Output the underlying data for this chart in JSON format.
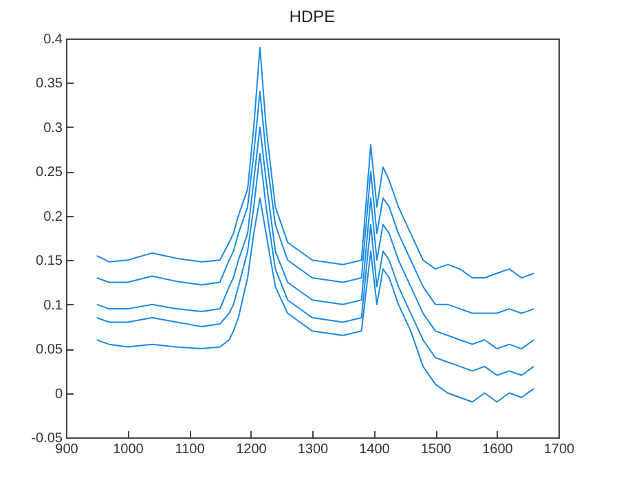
{
  "chart_data": {
    "type": "line",
    "title": "HDPE",
    "x": [
      950,
      970,
      1000,
      1040,
      1080,
      1120,
      1150,
      1165,
      1172,
      1180,
      1195,
      1205,
      1215,
      1225,
      1240,
      1260,
      1300,
      1350,
      1380,
      1395,
      1405,
      1415,
      1425,
      1440,
      1460,
      1480,
      1500,
      1520,
      1540,
      1560,
      1580,
      1600,
      1620,
      1640,
      1660
    ],
    "series": [
      {
        "color": "#1a8ae6",
        "values": [
          0.155,
          0.148,
          0.15,
          0.158,
          0.152,
          0.148,
          0.15,
          0.17,
          0.18,
          0.2,
          0.23,
          0.3,
          0.39,
          0.3,
          0.21,
          0.17,
          0.15,
          0.145,
          0.15,
          0.28,
          0.21,
          0.255,
          0.24,
          0.21,
          0.18,
          0.15,
          0.14,
          0.145,
          0.14,
          0.13,
          0.13,
          0.135,
          0.14,
          0.13,
          0.135
        ]
      },
      {
        "color": "#1a8ae6",
        "values": [
          0.13,
          0.125,
          0.125,
          0.132,
          0.126,
          0.122,
          0.125,
          0.15,
          0.16,
          0.18,
          0.21,
          0.27,
          0.34,
          0.27,
          0.19,
          0.15,
          0.13,
          0.125,
          0.13,
          0.25,
          0.18,
          0.22,
          0.21,
          0.18,
          0.15,
          0.12,
          0.1,
          0.1,
          0.095,
          0.09,
          0.09,
          0.09,
          0.095,
          0.09,
          0.095
        ]
      },
      {
        "color": "#1a8ae6",
        "values": [
          0.1,
          0.095,
          0.095,
          0.1,
          0.095,
          0.092,
          0.095,
          0.12,
          0.13,
          0.15,
          0.18,
          0.24,
          0.3,
          0.24,
          0.16,
          0.125,
          0.105,
          0.1,
          0.105,
          0.22,
          0.15,
          0.19,
          0.18,
          0.15,
          0.12,
          0.09,
          0.07,
          0.065,
          0.06,
          0.055,
          0.06,
          0.05,
          0.055,
          0.05,
          0.06
        ]
      },
      {
        "color": "#1a8ae6",
        "values": [
          0.085,
          0.08,
          0.08,
          0.085,
          0.08,
          0.075,
          0.078,
          0.09,
          0.1,
          0.12,
          0.16,
          0.21,
          0.27,
          0.21,
          0.14,
          0.105,
          0.085,
          0.08,
          0.085,
          0.19,
          0.12,
          0.16,
          0.15,
          0.12,
          0.09,
          0.06,
          0.04,
          0.035,
          0.03,
          0.025,
          0.03,
          0.02,
          0.025,
          0.02,
          0.03
        ]
      },
      {
        "color": "#1a8ae6",
        "values": [
          0.06,
          0.055,
          0.052,
          0.055,
          0.052,
          0.05,
          0.052,
          0.06,
          0.07,
          0.085,
          0.13,
          0.18,
          0.22,
          0.18,
          0.12,
          0.09,
          0.07,
          0.065,
          0.07,
          0.16,
          0.1,
          0.14,
          0.13,
          0.1,
          0.07,
          0.03,
          0.01,
          0,
          -0.005,
          -0.01,
          0,
          -0.01,
          0,
          -0.005,
          0.005
        ]
      }
    ],
    "xlim": [
      900,
      1700
    ],
    "xticks": [
      900,
      1000,
      1100,
      1200,
      1300,
      1400,
      1500,
      1600,
      1700
    ],
    "ylim": [
      -0.05,
      0.4
    ],
    "yticks": [
      -0.05,
      0,
      0.05,
      0.1,
      0.15,
      0.2,
      0.25,
      0.3,
      0.35,
      0.4
    ]
  }
}
